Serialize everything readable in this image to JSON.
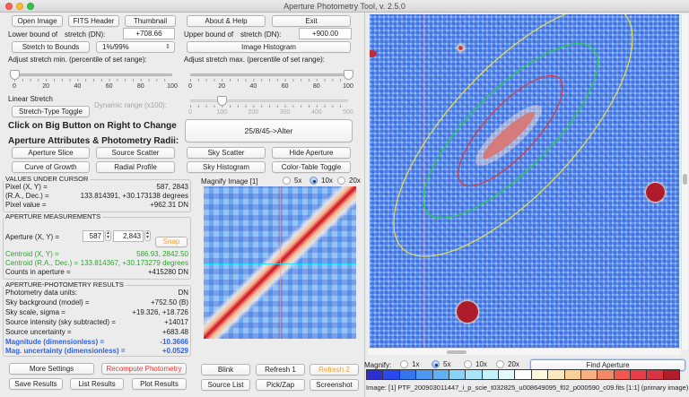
{
  "window": {
    "title": "Aperture Photometry Tool, v. 2.5.0"
  },
  "toolbar": {
    "open_image": "Open Image",
    "fits_header": "FITS Header",
    "thumbnail": "Thumbnail",
    "about_help": "About & Help",
    "exit": "Exit"
  },
  "stretch": {
    "lower_label": "Lower bound of",
    "lower_unit": "stretch (DN):",
    "lower_value": "+708.66",
    "upper_label": "Upper bound of",
    "upper_unit": "stretch (DN):",
    "upper_value": "+900.00",
    "stretch_to_bounds": "Stretch to Bounds",
    "percentile_select": "1%/99%",
    "image_histogram": "Image Histogram",
    "adjust_min_label": "Adjust stretch min. (percentile of set range):",
    "adjust_max_label": "Adjust stretch max. (percentile of set range):",
    "min_slider": {
      "value": 0,
      "ticks": [
        "0",
        "20",
        "40",
        "60",
        "80",
        "100"
      ]
    },
    "max_slider": {
      "value": 100,
      "ticks": [
        "0",
        "20",
        "40",
        "60",
        "80",
        "100"
      ]
    },
    "stretch_type": "Linear Stretch",
    "stretch_type_toggle": "Stretch-Type Toggle",
    "dynamic_range_label": "Dynamic range (x100):",
    "dynamic_slider": {
      "value": 100,
      "ticks": [
        "0",
        "100",
        "200",
        "300",
        "400",
        "500"
      ]
    }
  },
  "aperture_controls": {
    "instruction_line1": "Click on Big Button on Right to Change",
    "instruction_line2": "Aperture Attributes & Photometry Radii:",
    "big_button": "25/8/45->Alter",
    "buttons": {
      "aperture_slice": "Aperture Slice",
      "source_scatter": "Source Scatter",
      "sky_scatter": "Sky Scatter",
      "hide_aperture": "Hide Aperture",
      "curve_of_growth": "Curve of Growth",
      "radial_profile": "Radial Profile",
      "sky_histogram": "Sky Histogram",
      "color_table_toggle": "Color-Table Toggle"
    }
  },
  "cursor_values": {
    "title": "VALUES UNDER CURSOR",
    "rows": [
      {
        "label": "Pixel (X, Y) =",
        "value": "587, 2843"
      },
      {
        "label": "(R.A., Dec.) =",
        "value": "133.814391, +30.173138 degrees"
      },
      {
        "label": "Pixel value =",
        "value": "+962.31 DN"
      }
    ]
  },
  "aperture_measurements": {
    "title": "APERTURE MEASUREMENTS",
    "aperture_label": "Aperture (X, Y) =",
    "x_value": "587",
    "y_value": "2,843",
    "snap": "Snap",
    "centroid_xy_label": "Centroid (X, Y) =",
    "centroid_xy_value": "586.93, 2842.50",
    "centroid_radec_label": "Centroid (R.A., Dec.) =",
    "centroid_radec_value": "133.814367, +30.173279 degrees",
    "counts_label": "Counts in aperture =",
    "counts_value": "+415280 DN"
  },
  "photometry_results": {
    "title": "APERTURE-PHOTOMETRY RESULTS",
    "rows": [
      {
        "label": "Photometry data units:",
        "value": "DN"
      },
      {
        "label": "Sky background (model) =",
        "value": "+752.50 (B)"
      },
      {
        "label": "Sky scale, sigma =",
        "value": "+19.326, +18.726"
      },
      {
        "label": "Source intensity (sky subtracted)  =",
        "value": "+14017"
      },
      {
        "label": "Source uncertainty =",
        "value": "+683.48"
      },
      {
        "label": "Magnitude (dimensionless) =",
        "value": "-10.3666"
      },
      {
        "label": "Mag. uncertainty (dimensionless) =",
        "value": "+0.0529"
      }
    ]
  },
  "magnify_panel": {
    "title": "Magnify Image [1]",
    "options": [
      "5x",
      "10x",
      "20x"
    ],
    "selected": "10x"
  },
  "bottom_buttons": {
    "more_settings": "More Settings",
    "recompute_photometry": "Recompute Photometry",
    "save_results": "Save Results",
    "list_results": "List Results",
    "plot_results": "Plot Results",
    "blink": "Blink",
    "refresh1": "Refresh 1",
    "refresh2": "Refresh 2",
    "source_list": "Source List",
    "pick_zap": "Pick/Zap",
    "screenshot": "Screenshot"
  },
  "image_view": {
    "magnify_label": "Magnify:",
    "magnify_options": [
      "1x",
      "5x",
      "10x",
      "20x"
    ],
    "magnify_selected": "5x",
    "find_aperture": "Find Aperture",
    "colorbar": [
      "#2d2fd0",
      "#2a48ee",
      "#3576ee",
      "#4e98f1",
      "#62b0f4",
      "#87d3fa",
      "#a8e5f8",
      "#c4f2fb",
      "#e2fbfd",
      "#ffffff",
      "#fef8da",
      "#fde7bd",
      "#fbcf9a",
      "#f8b181",
      "#f48a63",
      "#f0584f",
      "#e83e47",
      "#d83343",
      "#b21d2d"
    ],
    "status": "Image: [1]  PTF_200903011447_i_p_scie_t032825_u008649095_f02_p000590_c09.fits [1:1] (primary image)",
    "aperture_colors": {
      "source": "#d83a3a",
      "inner_sky": "#22d13a",
      "outer_sky": "#e8e04a"
    }
  }
}
